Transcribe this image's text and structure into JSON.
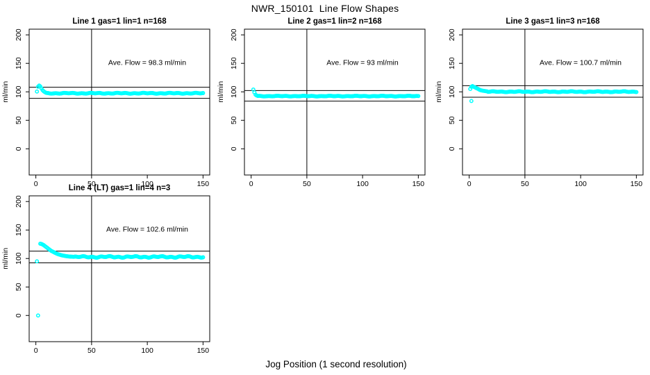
{
  "figure": {
    "title": "NWR_150101  Line Flow Shapes",
    "xlabel": "Jog Position (1 second resolution)",
    "point_color": "#00ffff",
    "line_color": "#000000",
    "background": "#ffffff"
  },
  "chart_data": [
    {
      "type": "scatter",
      "title": "Line 1 gas=1 lin=1 n=168",
      "line": 1,
      "gas": 1,
      "lin": 1,
      "n": 168,
      "annotation": "Ave. Flow =  98.3  ml/min",
      "ave_flow_ml_min": 98.3,
      "ylabel": "ml/min",
      "xticks": [
        0,
        50,
        100,
        150
      ],
      "yticks": [
        0,
        50,
        100,
        150,
        200
      ],
      "xlim": [
        -6,
        156
      ],
      "ylim": [
        -46,
        210
      ],
      "hlines": [
        108.1,
        88.5
      ],
      "vline": 50,
      "transient": [
        [
          1,
          100.5
        ],
        [
          2,
          109
        ],
        [
          3,
          111
        ],
        [
          4,
          109.5
        ],
        [
          5,
          106
        ],
        [
          6,
          103
        ],
        [
          7,
          101
        ],
        [
          8,
          99.5
        ],
        [
          9,
          98.5
        ],
        [
          10,
          98
        ]
      ],
      "steady": {
        "x_start": 11,
        "x_end": 150,
        "value": 97.5,
        "amplitude": 0.8
      },
      "outliers": []
    },
    {
      "type": "scatter",
      "title": "Line 2 gas=1 lin=2 n=168",
      "line": 2,
      "gas": 1,
      "lin": 2,
      "n": 168,
      "annotation": "Ave. Flow =  93  ml/min",
      "ave_flow_ml_min": 93,
      "ylabel": "ml/min",
      "xticks": [
        0,
        50,
        100,
        150
      ],
      "yticks": [
        0,
        50,
        100,
        150,
        200
      ],
      "xlim": [
        -6,
        156
      ],
      "ylim": [
        -46,
        210
      ],
      "hlines": [
        102.3,
        83.7
      ],
      "vline": 50,
      "transient": [
        [
          2,
          104
        ],
        [
          3,
          99
        ],
        [
          4,
          95
        ],
        [
          5,
          93.5
        ]
      ],
      "steady": {
        "x_start": 6,
        "x_end": 150,
        "value": 92.5,
        "amplitude": 0.6
      },
      "outliers": []
    },
    {
      "type": "scatter",
      "title": "Line 3 gas=1 lin=3 n=168",
      "line": 3,
      "gas": 1,
      "lin": 3,
      "n": 168,
      "annotation": "Ave. Flow =  100.7  ml/min",
      "ave_flow_ml_min": 100.7,
      "ylabel": "ml/min",
      "xticks": [
        0,
        50,
        100,
        150
      ],
      "yticks": [
        0,
        50,
        100,
        150,
        200
      ],
      "xlim": [
        -6,
        156
      ],
      "ylim": [
        -46,
        210
      ],
      "hlines": [
        110.8,
        90.6
      ],
      "vline": 50,
      "transient": [
        [
          1,
          105
        ],
        [
          2,
          109
        ],
        [
          3,
          110
        ],
        [
          4,
          109
        ],
        [
          5,
          108
        ],
        [
          6,
          107
        ],
        [
          7,
          106
        ],
        [
          8,
          105
        ],
        [
          9,
          104
        ],
        [
          10,
          103
        ],
        [
          11,
          102.5
        ],
        [
          12,
          102
        ],
        [
          13,
          101.7
        ],
        [
          14,
          101.4
        ],
        [
          15,
          101.1
        ],
        [
          16,
          100.8
        ]
      ],
      "steady": {
        "x_start": 17,
        "x_end": 150,
        "value": 100.2,
        "amplitude": 0.8
      },
      "outliers": [
        [
          2,
          84
        ]
      ]
    },
    {
      "type": "scatter",
      "title": "Line 4 (LT) gas=1 lin=4 n=3",
      "line": 4,
      "gas": 1,
      "lin": 4,
      "n": 3,
      "annotation": "Ave. Flow =  102.6  ml/min",
      "ave_flow_ml_min": 102.6,
      "ylabel": "ml/min",
      "xticks": [
        0,
        50,
        100,
        150
      ],
      "yticks": [
        0,
        50,
        100,
        150,
        200
      ],
      "xlim": [
        -6,
        156
      ],
      "ylim": [
        -46,
        210
      ],
      "hlines": [
        112.9,
        92.3
      ],
      "vline": 50,
      "transient": [
        [
          4,
          126
        ],
        [
          5,
          125.5
        ],
        [
          6,
          124.5
        ],
        [
          7,
          123.5
        ],
        [
          8,
          122
        ],
        [
          9,
          120.5
        ],
        [
          10,
          119
        ],
        [
          11,
          117.5
        ],
        [
          12,
          116
        ],
        [
          13,
          114.5
        ],
        [
          14,
          113.2
        ],
        [
          15,
          112.2
        ],
        [
          16,
          111.2
        ],
        [
          17,
          110.2
        ],
        [
          18,
          109.2
        ],
        [
          19,
          108.3
        ],
        [
          20,
          107.5
        ],
        [
          21,
          106.9
        ],
        [
          22,
          106.3
        ],
        [
          23,
          105.8
        ],
        [
          24,
          105.3
        ],
        [
          25,
          104.9
        ],
        [
          26,
          104.5
        ],
        [
          27,
          104.2
        ],
        [
          28,
          104
        ],
        [
          29,
          103.7
        ],
        [
          30,
          103.5
        ],
        [
          31,
          103.3
        ],
        [
          32,
          103.2
        ],
        [
          33,
          103.1
        ],
        [
          34,
          103
        ]
      ],
      "steady": {
        "x_start": 35,
        "x_end": 150,
        "value": 102.8,
        "amplitude": 1.4
      },
      "outliers": [
        [
          1,
          95
        ],
        [
          2,
          0
        ]
      ]
    }
  ]
}
